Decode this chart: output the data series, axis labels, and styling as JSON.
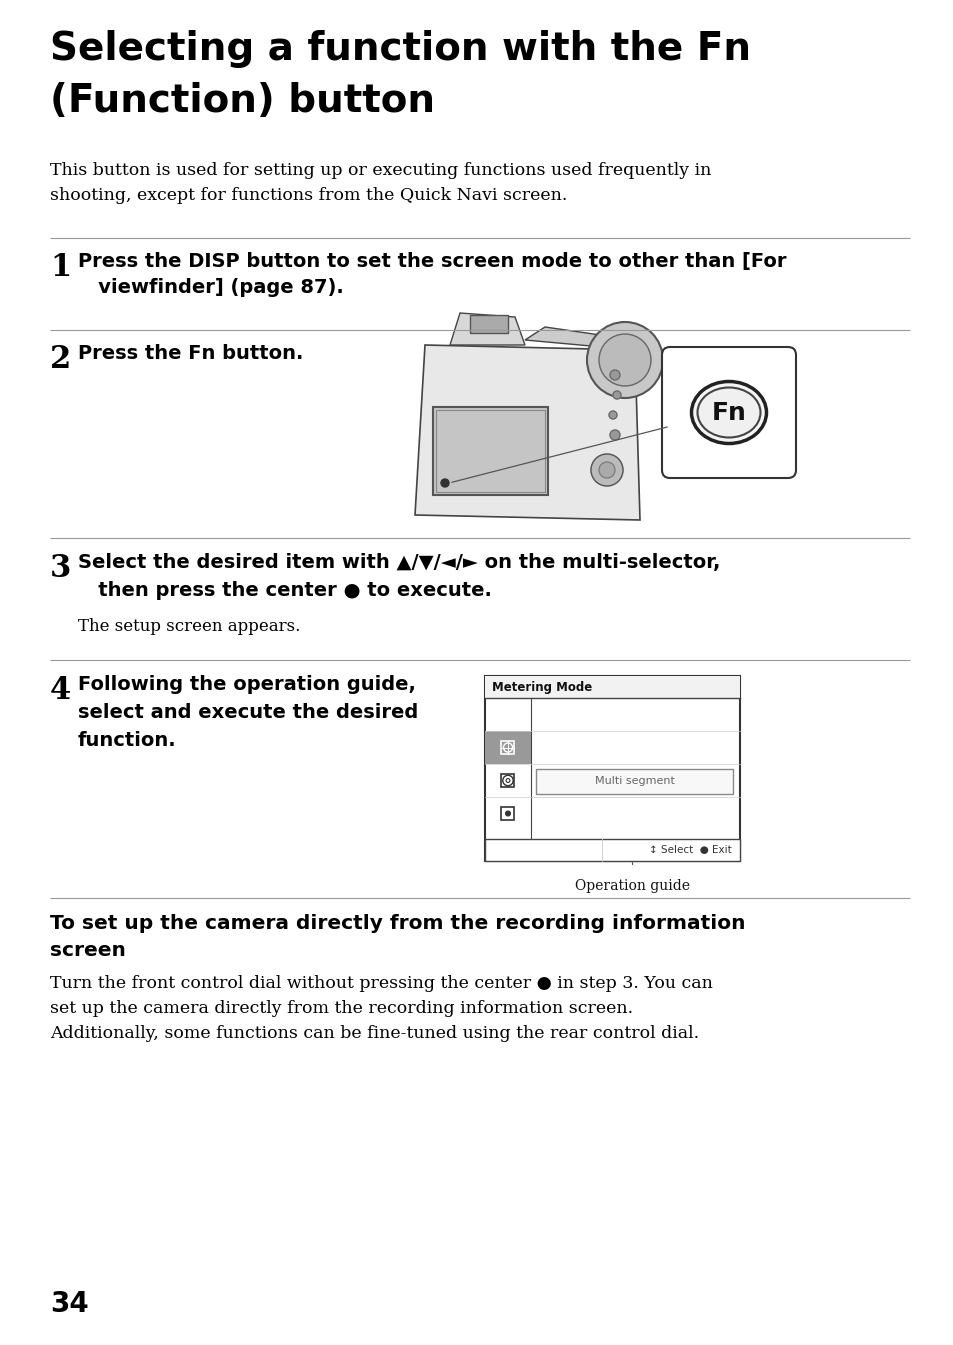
{
  "bg_color": "#ffffff",
  "text_color": "#000000",
  "line_color": "#aaaaaa",
  "title_line1": "Selecting a function with the Fn",
  "title_line2": "(Function) button",
  "intro": "This button is used for setting up or executing functions used frequently in\nshooting, except for functions from the Quick Navi screen.",
  "step1_num": "1",
  "step1_text": "Press the DISP button to set the screen mode to other than [For\n   viewfinder] (page 87).",
  "step2_num": "2",
  "step2_text": "Press the Fn button.",
  "step3_num": "3",
  "step3_line1": "Select the desired item with ▲/▼/◄/► on the multi-selector,",
  "step3_line2": "   then press the center ● to execute.",
  "step3_sub": "The setup screen appears.",
  "step4_num": "4",
  "step4_line1": "Following the operation guide,",
  "step4_line2": "select and execute the desired",
  "step4_line3": "function.",
  "section_title_line1": "To set up the camera directly from the recording information",
  "section_title_line2": "screen",
  "body1": "Turn the front control dial without pressing the center ● in step 3. You can",
  "body2": "set up the camera directly from the recording information screen.",
  "body3": "Additionally, some functions can be fine-tuned using the rear control dial.",
  "page_num": "34",
  "fn_label": "Fn",
  "metering_title": "Metering Mode",
  "multi_segment": "Multi segment",
  "op_guide_label": "Operation guide",
  "select_exit": "↕ Select  ● Exit"
}
